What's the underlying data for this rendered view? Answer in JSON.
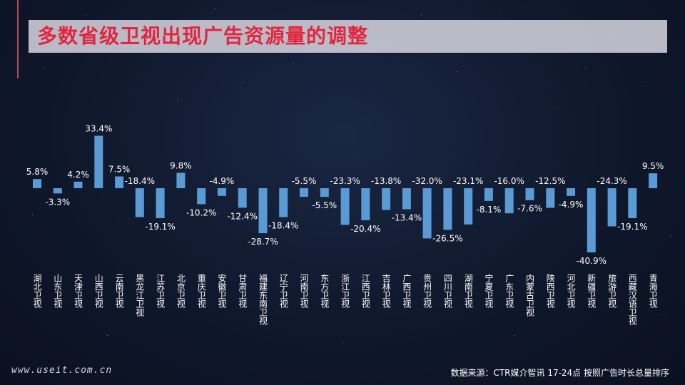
{
  "title": "多数省级卫视出现广告资源量的调整",
  "footer": {
    "watermark": "www.useit.com.cn",
    "source": "数据来源：CTR媒介智讯  17-24点  按照广告时长总量排序"
  },
  "colors": {
    "bar": "#5b9bd5",
    "title": "#e2263f",
    "label": "#ffffff"
  },
  "chart_data": {
    "type": "bar",
    "categories": [
      "湖北卫视",
      "山东卫视",
      "天津卫视",
      "山西卫视",
      "云南卫视",
      "黑龙江卫视",
      "江苏卫视",
      "北京卫视",
      "重庆卫视",
      "安徽卫视",
      "甘肃卫视",
      "福建东南卫视",
      "辽宁卫视",
      "河南卫视",
      "东方卫视",
      "浙江卫视",
      "江西卫视",
      "吉林卫视",
      "广西卫视",
      "贵州卫视",
      "四川卫视",
      "湖南卫视",
      "宁夏卫视",
      "广东卫视",
      "内蒙古卫视",
      "陕西卫视",
      "河北卫视",
      "新疆卫视",
      "旅游卫视",
      "西藏汉语卫视",
      "青海卫视"
    ],
    "values": [
      5.8,
      -3.3,
      4.2,
      33.4,
      7.5,
      -18.4,
      -19.1,
      9.8,
      -10.2,
      -4.9,
      -12.4,
      -28.7,
      -18.4,
      -5.5,
      -5.5,
      -23.3,
      -20.4,
      -13.8,
      -13.4,
      -32.0,
      -26.5,
      -23.1,
      -8.1,
      -16.0,
      -7.6,
      -12.5,
      -4.9,
      -40.9,
      -24.3,
      -19.1,
      9.5
    ],
    "labels": [
      "5.8%",
      "-3.3%",
      "4.2%",
      "33.4%",
      "7.5%",
      "-18.4%",
      "-19.1%",
      "9.8%",
      "-10.2%",
      "-4.9%",
      "-12.4%",
      "-28.7%",
      "-18.4%",
      "-5.5%",
      "-5.5%",
      "-23.3%",
      "-20.4%",
      "-13.8%",
      "-13.4%",
      "-32.0%",
      "-26.5%",
      "-23.1%",
      "-8.1%",
      "-16.0%",
      "-7.6%",
      "-12.5%",
      "-4.9%",
      "-40.9%",
      "-24.3%",
      "-19.1%",
      "9.5%"
    ],
    "label_side": [
      "above",
      "below",
      "above",
      "above",
      "above",
      "above",
      "below",
      "above",
      "below",
      "above",
      "below",
      "below",
      "below",
      "above",
      "below",
      "above",
      "below",
      "above",
      "below",
      "above",
      "below",
      "above",
      "below",
      "above",
      "below",
      "above",
      "below",
      "below",
      "above",
      "below",
      "above"
    ],
    "grid": false,
    "legend": "none"
  }
}
